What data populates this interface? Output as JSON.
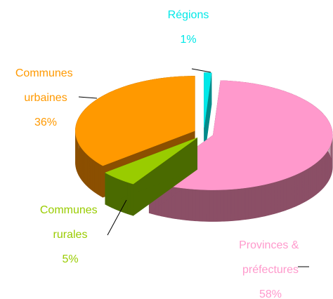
{
  "chart_data": {
    "type": "pie",
    "categories": [
      "Régions",
      "Provinces & préfectures",
      "Communes rurales",
      "Communes urbaines"
    ],
    "values": [
      1,
      58,
      5,
      36
    ],
    "value_labels": [
      "1%",
      "58%",
      "5%",
      "36%"
    ],
    "colors": [
      "#00e8e8",
      "#ff99cc",
      "#99cc00",
      "#ff9900"
    ],
    "side_colors": [
      "#008b8b",
      "#8b4f66",
      "#4a6a00",
      "#8b4f00"
    ]
  }
}
